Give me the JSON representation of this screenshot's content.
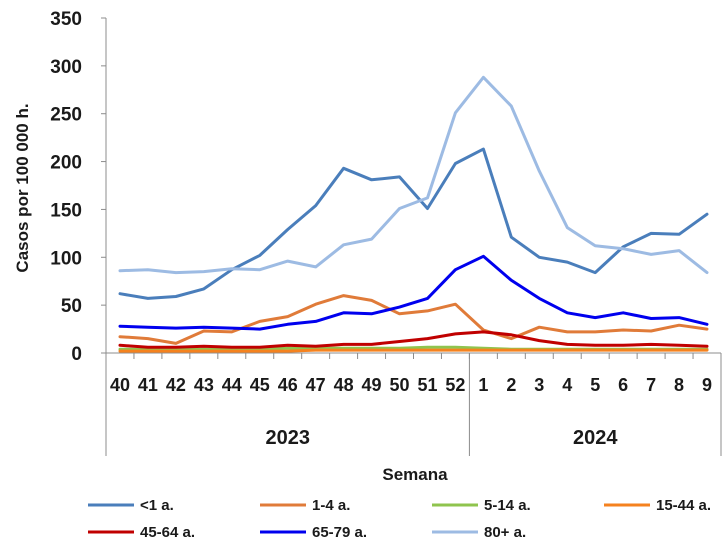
{
  "chart_data": {
    "type": "line",
    "xlabel": "Semana",
    "ylabel": "Casos por 100 000 h.",
    "ylim": [
      0,
      350
    ],
    "yticks": [
      "0",
      "50",
      "100",
      "150",
      "200",
      "250",
      "300",
      "350"
    ],
    "grid": false,
    "legend_position": "bottom",
    "categories": [
      "40",
      "41",
      "42",
      "43",
      "44",
      "45",
      "46",
      "47",
      "48",
      "49",
      "50",
      "51",
      "52",
      "1",
      "2",
      "3",
      "4",
      "5",
      "6",
      "7",
      "8",
      "9"
    ],
    "groups": [
      {
        "label": "2023",
        "count": 13
      },
      {
        "label": "2024",
        "count": 9
      }
    ],
    "series": [
      {
        "name": "<1 a.",
        "color": "#4a7ebb",
        "values": [
          62,
          57,
          59,
          67,
          87,
          102,
          129,
          154,
          193,
          181,
          184,
          151,
          198,
          213,
          121,
          100,
          95,
          84,
          111,
          125,
          124,
          145
        ]
      },
      {
        "name": "1-4 a.",
        "color": "#e07b39",
        "values": [
          17,
          15,
          10,
          23,
          22,
          33,
          38,
          51,
          60,
          55,
          41,
          44,
          51,
          24,
          15,
          27,
          22,
          22,
          24,
          23,
          29,
          25
        ]
      },
      {
        "name": "5-14 a.",
        "color": "#8fc44e",
        "values": [
          4,
          4,
          4,
          4,
          4,
          4,
          5,
          5,
          5,
          5,
          5,
          6,
          6,
          5,
          4,
          4,
          4,
          4,
          4,
          4,
          4,
          4
        ]
      },
      {
        "name": "15-44 a.",
        "color": "#f5821f",
        "values": [
          2,
          2,
          2,
          2,
          2,
          2,
          2,
          3,
          3,
          3,
          3,
          3,
          3,
          3,
          3,
          3,
          3,
          3,
          3,
          3,
          3,
          3
        ]
      },
      {
        "name": "45-64 a.",
        "color": "#c00000",
        "values": [
          8,
          6,
          6,
          7,
          6,
          6,
          8,
          7,
          9,
          9,
          12,
          15,
          20,
          22,
          19,
          13,
          9,
          8,
          8,
          9,
          8,
          7
        ]
      },
      {
        "name": "65-79 a.",
        "color": "#0000ee",
        "values": [
          28,
          27,
          26,
          27,
          26,
          25,
          30,
          33,
          42,
          41,
          48,
          57,
          87,
          101,
          76,
          57,
          42,
          37,
          42,
          36,
          37,
          30
        ]
      },
      {
        "name": "80+ a.",
        "color": "#9dbbe3",
        "values": [
          86,
          87,
          84,
          85,
          88,
          87,
          96,
          90,
          113,
          119,
          151,
          162,
          251,
          288,
          258,
          190,
          131,
          112,
          109,
          103,
          107,
          84
        ]
      }
    ]
  }
}
